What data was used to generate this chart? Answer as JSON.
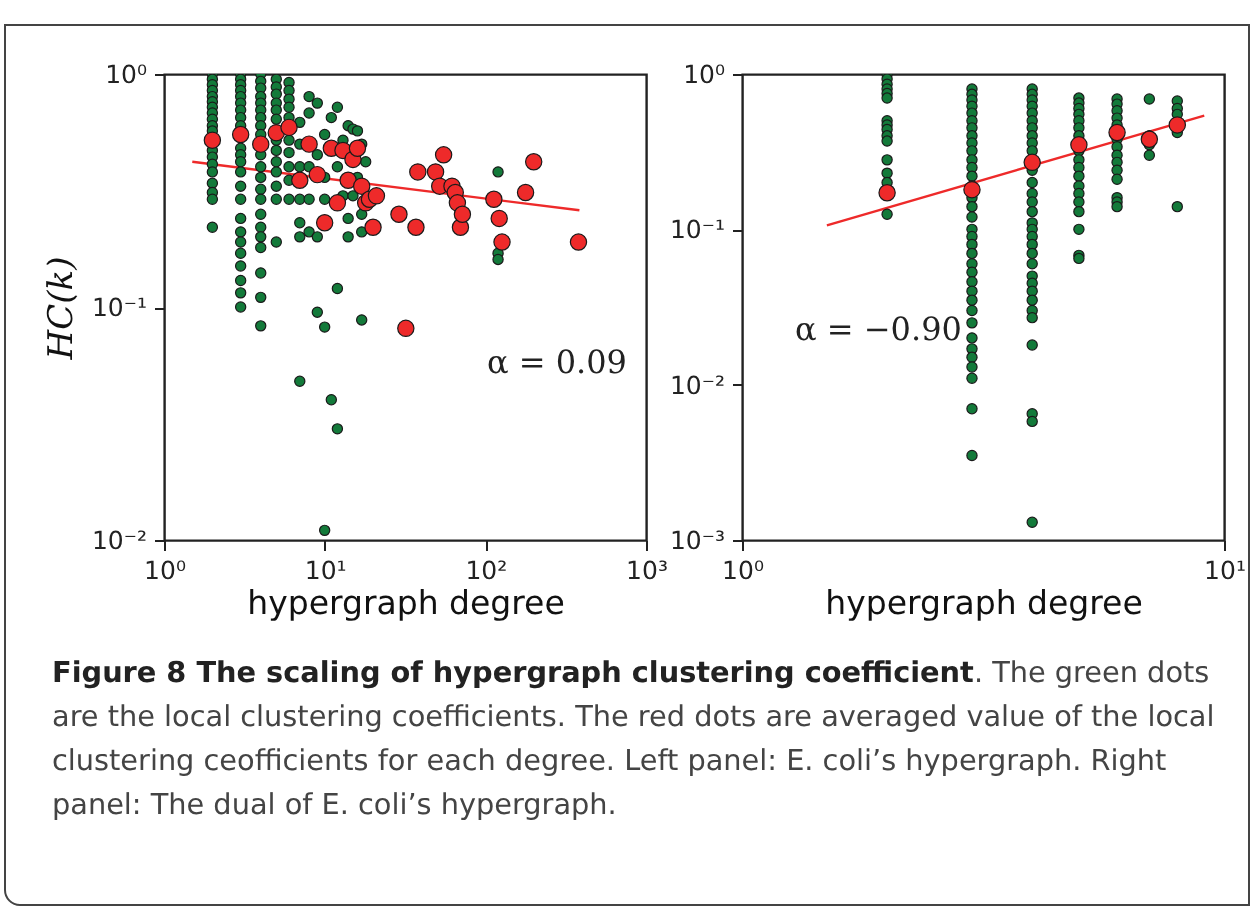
{
  "chart_data": [
    {
      "type": "scatter",
      "title": "Figure 8 The scaling of hypergraph clustering coefficient",
      "subtitle": ". The green dots are the local clustering coefficients. The red dots are averaged value of the local clustering ceofficients for each degree. Left panel: E. coli’s hypergraph. Right panel: The dual of E. coli’s hypergraph.",
      "xlabel": "hypergraph degree",
      "ylabel": "HC(k)",
      "log": "xy",
      "marker": "circle",
      "xlim": [
        1,
        1000
      ],
      "ylim": [
        0.01,
        1
      ],
      "xticks": [
        {
          "value": 1,
          "label": "10⁰"
        },
        {
          "value": 10,
          "label": "10¹"
        },
        {
          "value": 100,
          "label": "10²"
        },
        {
          "value": 1000,
          "label": "10³"
        }
      ],
      "yticks": [
        {
          "value": 0.01,
          "label": "10⁻²"
        },
        {
          "value": 0.1,
          "label": "10⁻¹"
        },
        {
          "value": 1,
          "label": "10⁰"
        }
      ],
      "series": [
        {
          "color": "#137a3a",
          "x": [
            2,
            2,
            2,
            2,
            2,
            2,
            2,
            2,
            2,
            2,
            2,
            2,
            2,
            2,
            2,
            2,
            2,
            2,
            2,
            3,
            3,
            3,
            3,
            3,
            3,
            3,
            3,
            3,
            3,
            3,
            3,
            3,
            3,
            3,
            3,
            3,
            3,
            3,
            3,
            3,
            3,
            3,
            4,
            4,
            4,
            4,
            4,
            4,
            4,
            4,
            4,
            4,
            4,
            4,
            4,
            4,
            4,
            4,
            4,
            4,
            4,
            4,
            4,
            5,
            5,
            5,
            5,
            5,
            5,
            5,
            5,
            5,
            5,
            5,
            5,
            5,
            6,
            6,
            6,
            6,
            6,
            6,
            6,
            6,
            6,
            6,
            7,
            7,
            7,
            7,
            7,
            7,
            7,
            8,
            8,
            8,
            8,
            8,
            9,
            9,
            9,
            9,
            10,
            10,
            10,
            10,
            10,
            11,
            11,
            12,
            12,
            12,
            12,
            13,
            13,
            14,
            14,
            14,
            15,
            15,
            16,
            16,
            17,
            17,
            17,
            17,
            18,
            120,
            120,
            120
          ],
          "values": [
            1,
            0.95,
            0.9,
            0.85,
            0.8,
            0.76,
            0.72,
            0.68,
            0.64,
            0.6,
            0.57,
            0.47,
            0.44,
            0.41,
            0.38,
            0.34,
            0.31,
            0.29,
            0.22,
            1,
            0.95,
            0.9,
            0.85,
            0.8,
            0.75,
            0.7,
            0.65,
            0.6,
            0.48,
            0.45,
            0.42,
            0.38,
            0.33,
            0.29,
            0.24,
            0.21,
            0.19,
            0.17,
            0.15,
            0.13,
            0.115,
            0.1,
            1,
            0.93,
            0.87,
            0.8,
            0.75,
            0.7,
            0.65,
            0.6,
            0.55,
            0.45,
            0.4,
            0.36,
            0.32,
            0.29,
            0.25,
            0.22,
            0.2,
            0.18,
            0.14,
            0.11,
            0.083,
            0.95,
            0.88,
            0.82,
            0.75,
            0.7,
            0.64,
            0.52,
            0.47,
            0.42,
            0.38,
            0.33,
            0.29,
            0.19,
            0.92,
            0.85,
            0.78,
            0.72,
            0.65,
            0.52,
            0.46,
            0.4,
            0.35,
            0.29,
            0.62,
            0.5,
            0.4,
            0.29,
            0.23,
            0.2,
            0.048,
            0.8,
            0.68,
            0.4,
            0.29,
            0.21,
            0.75,
            0.45,
            0.2,
            0.095,
            0.55,
            0.36,
            0.29,
            0.082,
            0.011,
            0.65,
            0.04,
            0.72,
            0.4,
            0.12,
            0.03,
            0.52,
            0.3,
            0.6,
            0.24,
            0.2,
            0.58,
            0.3,
            0.57,
            0.36,
            0.5,
            0.25,
            0.21,
            0.088,
            0.42,
            0.38,
            0.17,
            0.16
          ]
        },
        {
          "color": "#ee2a2a",
          "x": [
            2,
            3,
            4,
            5,
            6,
            7,
            8,
            9,
            10,
            11,
            12,
            13,
            14,
            15,
            16,
            17,
            18,
            19,
            20,
            21,
            29,
            32,
            37,
            38,
            49,
            52,
            55,
            62,
            65,
            67,
            70,
            72,
            113,
            122,
            127,
            178,
            200,
            380
          ],
          "values": [
            0.52,
            0.55,
            0.5,
            0.56,
            0.59,
            0.35,
            0.5,
            0.37,
            0.23,
            0.48,
            0.28,
            0.47,
            0.35,
            0.43,
            0.48,
            0.33,
            0.28,
            0.29,
            0.22,
            0.3,
            0.25,
            0.081,
            0.22,
            0.38,
            0.38,
            0.33,
            0.45,
            0.33,
            0.31,
            0.28,
            0.22,
            0.25,
            0.29,
            0.24,
            0.19,
            0.31,
            0.42,
            0.19
          ]
        },
        {
          "type": "line",
          "marker": "none",
          "color": "#ee2a2a",
          "x": [
            1.5,
            385
          ],
          "values": [
            0.42,
            0.26
          ]
        }
      ],
      "annotations": [
        "α = 0.09"
      ]
    },
    {
      "type": "scatter",
      "xlabel": "hypergraph degree",
      "log": "xy",
      "marker": "circle",
      "xlim": [
        1,
        10
      ],
      "ylim": [
        0.001,
        1
      ],
      "xticks": [
        {
          "value": 1,
          "label": "10⁰"
        },
        {
          "value": 10,
          "label": "10¹"
        }
      ],
      "yticks": [
        {
          "value": 0.001,
          "label": "10⁻³"
        },
        {
          "value": 0.01,
          "label": "10⁻²"
        },
        {
          "value": 0.1,
          "label": "10⁻¹"
        },
        {
          "value": 1,
          "label": "10⁰"
        }
      ],
      "series": [
        {
          "color": "#137a3a",
          "x": [
            2,
            2,
            2,
            2,
            2,
            2,
            2,
            2,
            2,
            2,
            2,
            2,
            2,
            2,
            2,
            3,
            3,
            3,
            3,
            3,
            3,
            3,
            3,
            3,
            3,
            3,
            3,
            3,
            3,
            3,
            3,
            3,
            3,
            3,
            3,
            3,
            3,
            3,
            3,
            3,
            3,
            3,
            3,
            3,
            3,
            3,
            3,
            3,
            3,
            3,
            4,
            4,
            4,
            4,
            4,
            4,
            4,
            4,
            4,
            4,
            4,
            4,
            4,
            4,
            4,
            4,
            4,
            4,
            4,
            4,
            4,
            4,
            4,
            4,
            4,
            4,
            4,
            4,
            4,
            4,
            4,
            5,
            5,
            5,
            5,
            5,
            5,
            5,
            5,
            5,
            5,
            5,
            5,
            5,
            5,
            5,
            5,
            5,
            5,
            6,
            6,
            6,
            6,
            6,
            6,
            6,
            6,
            6,
            6,
            6,
            6,
            6,
            6,
            7,
            7,
            7,
            7,
            8,
            8,
            8,
            8,
            8
          ],
          "values": [
            1,
            0.93,
            0.86,
            0.8,
            0.75,
            0.7,
            0.5,
            0.47,
            0.44,
            0.4,
            0.37,
            0.28,
            0.23,
            0.2,
            0.125,
            0.8,
            0.74,
            0.68,
            0.62,
            0.56,
            0.5,
            0.45,
            0.4,
            0.36,
            0.32,
            0.28,
            0.25,
            0.22,
            0.19,
            0.16,
            0.14,
            0.12,
            0.1,
            0.09,
            0.08,
            0.07,
            0.06,
            0.053,
            0.046,
            0.04,
            0.035,
            0.03,
            0.025,
            0.02,
            0.017,
            0.015,
            0.013,
            0.011,
            0.007,
            0.0035,
            0.8,
            0.74,
            0.68,
            0.62,
            0.56,
            0.5,
            0.45,
            0.4,
            0.36,
            0.32,
            0.24,
            0.2,
            0.17,
            0.15,
            0.13,
            0.11,
            0.1,
            0.09,
            0.08,
            0.07,
            0.06,
            0.05,
            0.045,
            0.04,
            0.035,
            0.03,
            0.027,
            0.018,
            0.0065,
            0.0058,
            0.0013,
            0.7,
            0.65,
            0.6,
            0.55,
            0.5,
            0.45,
            0.4,
            0.32,
            0.28,
            0.25,
            0.22,
            0.19,
            0.17,
            0.15,
            0.13,
            0.1,
            0.068,
            0.065,
            0.69,
            0.64,
            0.58,
            0.52,
            0.47,
            0.38,
            0.34,
            0.3,
            0.27,
            0.24,
            0.21,
            0.16,
            0.15,
            0.14,
            0.69,
            0.4,
            0.35,
            0.3,
            0.67,
            0.6,
            0.55,
            0.42,
            0.14
          ]
        },
        {
          "color": "#ee2a2a",
          "x": [
            2,
            3,
            4,
            5,
            6,
            7,
            8
          ],
          "values": [
            0.172,
            0.18,
            0.27,
            0.35,
            0.42,
            0.38,
            0.47
          ]
        },
        {
          "type": "line",
          "marker": "none",
          "color": "#ee2a2a",
          "x": [
            1.5,
            9.1
          ],
          "values": [
            0.106,
            0.54
          ]
        }
      ],
      "annotations": [
        "α = −0.90"
      ]
    }
  ]
}
